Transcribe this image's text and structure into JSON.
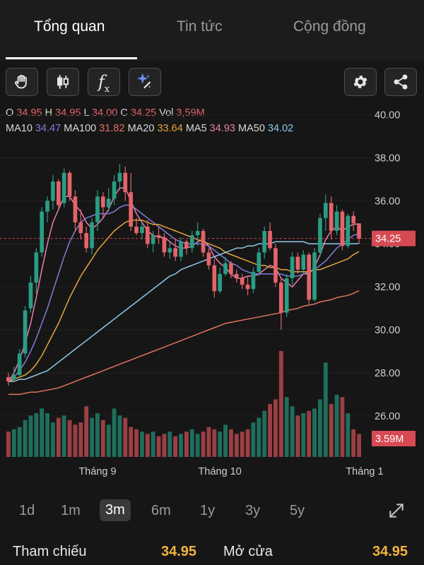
{
  "tabs": [
    {
      "label": "Tổng quan",
      "active": true
    },
    {
      "label": "Tin tức",
      "active": false
    },
    {
      "label": "Cộng đồng",
      "active": false
    }
  ],
  "toolbar": {
    "left_icons": [
      "hand-icon",
      "candlestick-icon",
      "function-icon",
      "sparkle-wand-icon"
    ],
    "function_label": "f",
    "function_sub": "x",
    "right_icons": [
      "gear-icon",
      "share-icon"
    ]
  },
  "ohlc": {
    "o_label": "O",
    "o": "34.95",
    "h_label": "H",
    "h": "34.95",
    "l_label": "L",
    "l": "34.00",
    "c_label": "C",
    "c": "34.25",
    "vol_label": "Vol",
    "vol": "3,59M"
  },
  "ma": [
    {
      "label": "MA10",
      "value": "34.47",
      "color": "#7f7fdc"
    },
    {
      "label": "MA100",
      "value": "31.82",
      "color": "#e0735f"
    },
    {
      "label": "MA20",
      "value": "33.64",
      "color": "#e6a43c"
    },
    {
      "label": "MA5",
      "value": "34.93",
      "color": "#e87fb0"
    },
    {
      "label": "MA50",
      "value": "34.02",
      "color": "#8ec9ea"
    }
  ],
  "colors": {
    "up": "#2a9d84",
    "down": "#e4646a",
    "grid": "#222222",
    "price_tag": "#d64a52"
  },
  "chart_data": {
    "type": "candlestick",
    "y_ticks": [
      "40.00",
      "38.00",
      "36.00",
      "34.00",
      "32.00",
      "30.00",
      "28.00",
      "26.00"
    ],
    "ylim": [
      25.6,
      40.15
    ],
    "x_ticks": [
      {
        "label": "Tháng 9",
        "index": 16
      },
      {
        "label": "Tháng 10",
        "index": 38
      },
      {
        "label": "Tháng 1",
        "index": 64
      }
    ],
    "last_price": "34.25",
    "last_volume": "3.59M",
    "candles": [
      [
        27.8,
        28.0,
        27.4,
        27.6
      ],
      [
        27.7,
        28.3,
        27.6,
        27.9
      ],
      [
        27.9,
        29.1,
        27.8,
        28.9
      ],
      [
        28.9,
        31.1,
        28.7,
        30.9
      ],
      [
        31.0,
        32.5,
        30.8,
        32.2
      ],
      [
        32.2,
        33.8,
        31.7,
        33.6
      ],
      [
        33.6,
        35.7,
        33.4,
        35.5
      ],
      [
        35.5,
        36.2,
        35.0,
        36.0
      ],
      [
        36.0,
        37.2,
        35.6,
        36.9
      ],
      [
        36.9,
        37.0,
        35.6,
        35.8
      ],
      [
        35.9,
        37.5,
        35.7,
        37.3
      ],
      [
        37.3,
        37.4,
        36.0,
        36.2
      ],
      [
        36.2,
        36.5,
        34.6,
        35.0
      ],
      [
        35.0,
        35.6,
        34.2,
        34.5
      ],
      [
        34.5,
        34.8,
        33.6,
        33.8
      ],
      [
        33.8,
        35.2,
        33.5,
        35.0
      ],
      [
        35.0,
        36.5,
        34.6,
        36.2
      ],
      [
        36.2,
        36.4,
        35.2,
        35.7
      ],
      [
        35.7,
        36.6,
        35.5,
        36.1
      ],
      [
        36.1,
        37.2,
        35.8,
        36.9
      ],
      [
        36.9,
        37.7,
        36.5,
        37.3
      ],
      [
        37.3,
        37.6,
        36.0,
        36.4
      ],
      [
        36.4,
        37.3,
        34.6,
        34.8
      ],
      [
        34.8,
        35.2,
        34.4,
        34.5
      ],
      [
        34.5,
        35.0,
        34.2,
        34.8
      ],
      [
        34.8,
        35.1,
        33.8,
        34.0
      ],
      [
        34.0,
        34.6,
        33.6,
        34.4
      ],
      [
        34.4,
        34.8,
        34.0,
        34.3
      ],
      [
        34.3,
        34.5,
        33.4,
        33.6
      ],
      [
        33.6,
        34.1,
        33.3,
        33.8
      ],
      [
        33.8,
        34.2,
        33.2,
        33.4
      ],
      [
        33.4,
        34.3,
        33.2,
        34.1
      ],
      [
        34.1,
        34.2,
        33.5,
        33.8
      ],
      [
        33.8,
        34.6,
        33.6,
        34.4
      ],
      [
        34.4,
        35.0,
        33.9,
        34.6
      ],
      [
        34.6,
        34.7,
        33.4,
        33.6
      ],
      [
        33.6,
        33.8,
        32.8,
        33.0
      ],
      [
        33.0,
        33.3,
        31.5,
        31.8
      ],
      [
        31.8,
        32.9,
        31.7,
        32.6
      ],
      [
        32.6,
        33.4,
        32.5,
        33.1
      ],
      [
        33.1,
        33.2,
        32.4,
        32.6
      ],
      [
        32.6,
        32.8,
        32.2,
        32.4
      ],
      [
        32.4,
        32.6,
        31.9,
        32.1
      ],
      [
        32.1,
        32.5,
        31.6,
        31.9
      ],
      [
        31.9,
        32.9,
        31.7,
        32.7
      ],
      [
        32.7,
        33.8,
        32.5,
        33.6
      ],
      [
        33.6,
        34.8,
        33.3,
        34.6
      ],
      [
        34.6,
        35.0,
        33.7,
        33.8
      ],
      [
        33.8,
        34.0,
        32.0,
        32.2
      ],
      [
        32.2,
        32.4,
        30.0,
        30.8
      ],
      [
        30.8,
        32.6,
        30.6,
        32.4
      ],
      [
        32.4,
        33.6,
        32.1,
        33.4
      ],
      [
        33.4,
        33.6,
        32.6,
        32.8
      ],
      [
        32.8,
        33.7,
        32.6,
        33.5
      ],
      [
        33.5,
        33.6,
        31.2,
        31.4
      ],
      [
        31.4,
        33.8,
        31.3,
        33.6
      ],
      [
        33.6,
        35.4,
        33.4,
        35.2
      ],
      [
        35.2,
        36.3,
        34.6,
        35.9
      ],
      [
        35.9,
        36.2,
        34.2,
        34.6
      ],
      [
        34.6,
        35.8,
        34.4,
        35.5
      ],
      [
        35.5,
        35.6,
        33.7,
        33.9
      ],
      [
        33.9,
        35.4,
        33.8,
        35.3
      ],
      [
        35.3,
        35.5,
        34.6,
        34.95
      ],
      [
        34.95,
        34.95,
        34.0,
        34.25
      ]
    ],
    "volumes": [
      1.1,
      1.2,
      1.3,
      1.6,
      1.8,
      1.9,
      2.1,
      1.9,
      1.5,
      1.7,
      1.8,
      1.6,
      1.4,
      1.5,
      2.2,
      1.7,
      1.9,
      1.6,
      1.4,
      2.1,
      1.8,
      1.7,
      1.3,
      1.2,
      1.1,
      1.0,
      1.1,
      0.9,
      1.0,
      1.1,
      0.9,
      1.0,
      1.1,
      1.2,
      1.0,
      1.1,
      1.3,
      1.2,
      1.1,
      1.4,
      1.2,
      1.0,
      1.1,
      1.2,
      1.5,
      1.7,
      2.0,
      2.3,
      2.5,
      4.6,
      2.6,
      2.2,
      1.8,
      1.9,
      2.0,
      2.1,
      2.5,
      4.1,
      2.3,
      2.7,
      2.6,
      1.9,
      1.2,
      1.0
    ],
    "ma_series": [
      {
        "name": "MA5",
        "color": "#e87fb0",
        "values": [
          27.6,
          28.0,
          28.6,
          29.4,
          30.3,
          31.5,
          32.8,
          34.0,
          35.0,
          35.6,
          36.2,
          36.2,
          35.8,
          35.5,
          35.0,
          34.7,
          34.9,
          35.2,
          35.6,
          36.2,
          36.6,
          36.6,
          36.0,
          35.4,
          35.0,
          34.6,
          34.4,
          34.3,
          34.3,
          34.1,
          33.9,
          33.8,
          33.8,
          33.9,
          34.1,
          34.2,
          33.9,
          33.4,
          33.1,
          32.9,
          32.6,
          32.4,
          32.4,
          32.5,
          32.5,
          32.6,
          32.8,
          33.0,
          32.9,
          32.4,
          32.2,
          32.0,
          32.3,
          32.6,
          32.6,
          32.9,
          33.5,
          34.2,
          34.6,
          34.8,
          34.6,
          34.8,
          34.9,
          34.93
        ]
      },
      {
        "name": "MA10",
        "color": "#7f7fdc",
        "values": [
          27.6,
          27.8,
          28.1,
          28.5,
          29.0,
          29.6,
          30.3,
          31.0,
          31.8,
          32.6,
          33.4,
          34.1,
          34.6,
          35.0,
          35.2,
          35.3,
          35.4,
          35.4,
          35.4,
          35.5,
          35.7,
          35.8,
          35.8,
          35.6,
          35.4,
          35.2,
          35.0,
          34.8,
          34.6,
          34.4,
          34.2,
          34.1,
          34.0,
          34.0,
          34.0,
          34.0,
          33.9,
          33.7,
          33.5,
          33.3,
          33.1,
          33.0,
          32.8,
          32.7,
          32.6,
          32.6,
          32.6,
          32.6,
          32.6,
          32.6,
          32.5,
          32.5,
          32.5,
          32.6,
          32.7,
          32.8,
          33.0,
          33.2,
          33.5,
          33.8,
          34.0,
          34.2,
          34.4,
          34.47
        ]
      },
      {
        "name": "MA20",
        "color": "#e6a43c",
        "values": [
          27.6,
          27.7,
          27.8,
          27.9,
          28.1,
          28.4,
          28.8,
          29.3,
          29.8,
          30.3,
          30.9,
          31.5,
          32.0,
          32.5,
          32.9,
          33.3,
          33.7,
          34.0,
          34.3,
          34.6,
          34.8,
          35.0,
          35.1,
          35.1,
          35.1,
          35.0,
          34.9,
          34.9,
          34.8,
          34.7,
          34.6,
          34.5,
          34.4,
          34.3,
          34.2,
          34.1,
          34.0,
          33.9,
          33.8,
          33.6,
          33.5,
          33.4,
          33.3,
          33.2,
          33.1,
          33.0,
          33.0,
          32.9,
          32.9,
          32.8,
          32.8,
          32.7,
          32.7,
          32.7,
          32.7,
          32.8,
          32.8,
          32.9,
          33.0,
          33.1,
          33.2,
          33.3,
          33.5,
          33.64
        ]
      },
      {
        "name": "MA50",
        "color": "#8ec9ea",
        "values": [
          27.6,
          27.6,
          27.7,
          27.7,
          27.8,
          27.9,
          28.0,
          28.1,
          28.3,
          28.5,
          28.7,
          28.9,
          29.1,
          29.3,
          29.5,
          29.7,
          29.9,
          30.1,
          30.3,
          30.5,
          30.7,
          30.9,
          31.1,
          31.3,
          31.5,
          31.7,
          31.9,
          32.1,
          32.3,
          32.5,
          32.6,
          32.8,
          32.9,
          33.0,
          33.1,
          33.2,
          33.3,
          33.4,
          33.5,
          33.6,
          33.7,
          33.8,
          33.8,
          33.9,
          33.9,
          34.0,
          34.0,
          34.0,
          34.1,
          34.1,
          34.1,
          34.1,
          34.1,
          34.1,
          34.0,
          34.0,
          34.0,
          34.0,
          34.0,
          34.0,
          34.0,
          34.0,
          34.0,
          34.02
        ]
      },
      {
        "name": "MA100",
        "color": "#e0735f",
        "values": [
          27.0,
          27.0,
          27.0,
          27.05,
          27.1,
          27.1,
          27.15,
          27.2,
          27.25,
          27.3,
          27.4,
          27.5,
          27.6,
          27.7,
          27.8,
          27.9,
          28.0,
          28.1,
          28.2,
          28.3,
          28.4,
          28.5,
          28.6,
          28.7,
          28.8,
          28.9,
          29.0,
          29.1,
          29.2,
          29.3,
          29.4,
          29.5,
          29.6,
          29.7,
          29.8,
          29.9,
          30.0,
          30.1,
          30.2,
          30.3,
          30.35,
          30.4,
          30.45,
          30.5,
          30.55,
          30.6,
          30.65,
          30.7,
          30.75,
          30.8,
          30.9,
          30.95,
          31.0,
          31.1,
          31.15,
          31.2,
          31.3,
          31.35,
          31.4,
          31.5,
          31.55,
          31.6,
          31.7,
          31.82
        ]
      }
    ]
  },
  "timeframes": [
    {
      "label": "1d",
      "active": false
    },
    {
      "label": "1m",
      "active": false
    },
    {
      "label": "3m",
      "active": true
    },
    {
      "label": "6m",
      "active": false
    },
    {
      "label": "1y",
      "active": false
    },
    {
      "label": "3y",
      "active": false
    },
    {
      "label": "5y",
      "active": false
    }
  ],
  "info_row": {
    "ref_label": "Tham chiếu",
    "ref_value": "34.95",
    "open_label": "Mở cửa",
    "open_value": "34.95"
  }
}
